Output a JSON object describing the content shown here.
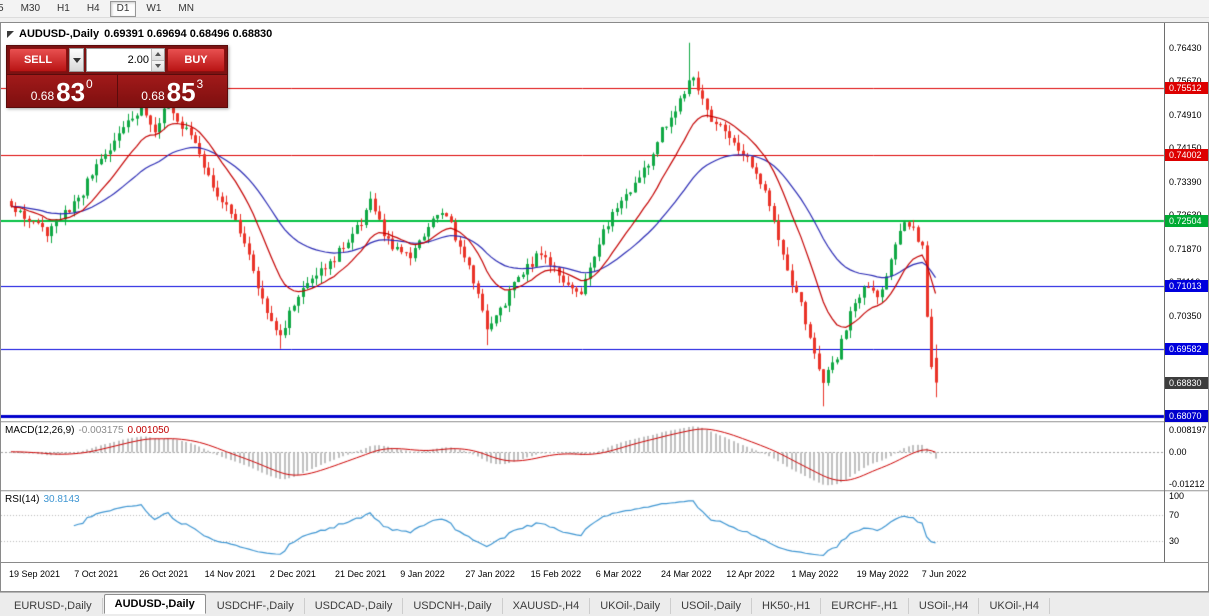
{
  "toolbar": {
    "periods": [
      {
        "label": "5",
        "active": false
      },
      {
        "label": "M30",
        "active": false
      },
      {
        "label": "H1",
        "active": false
      },
      {
        "label": "H4",
        "active": false
      },
      {
        "label": "D1",
        "active": true
      },
      {
        "label": "W1",
        "active": false
      },
      {
        "label": "MN",
        "active": false
      }
    ]
  },
  "chart_header": {
    "title": "AUDUSD-,Daily",
    "ohlc": "0.69391 0.69694 0.68496 0.68830"
  },
  "trade_panel": {
    "sell_label": "SELL",
    "buy_label": "BUY",
    "volume": "2.00",
    "bid": {
      "prefix": "0.68",
      "big": "83",
      "sup": "0"
    },
    "ask": {
      "prefix": "0.68",
      "big": "85",
      "sup": "3"
    }
  },
  "price_axis": {
    "labels": [
      "0.76430",
      "0.75670",
      "0.74910",
      "0.74150",
      "0.73390",
      "0.72630",
      "0.71870",
      "0.71110",
      "0.70350"
    ],
    "badges": [
      {
        "value": "0.75512",
        "color": "#dd0000",
        "current": false
      },
      {
        "value": "0.74002",
        "color": "#dd0000",
        "current": false
      },
      {
        "value": "0.72504",
        "color": "#00aa33",
        "current": false
      },
      {
        "value": "0.71013",
        "color": "#0000dd",
        "current": false
      },
      {
        "value": "0.69582",
        "color": "#0000dd",
        "current": false
      },
      {
        "value": "0.68830",
        "color": "#3d3d3d",
        "current": true
      },
      {
        "value": "0.68070",
        "color": "#0000cc",
        "current": false
      }
    ]
  },
  "macd_panel": {
    "label": "MACD(12,26,9)",
    "main_value": "-0.003175",
    "signal_value": "0.001050",
    "axis_labels": [
      {
        "text": "0.008197",
        "value": 0.008197
      },
      {
        "text": "0.00",
        "value": 0
      },
      {
        "text": "-0.01212",
        "value": -0.01212
      }
    ]
  },
  "rsi_panel": {
    "label": "RSI(14)",
    "value": "30.8143",
    "axis_labels": [
      {
        "text": "100",
        "value": 100
      },
      {
        "text": "70",
        "value": 70
      },
      {
        "text": "30",
        "value": 30
      }
    ],
    "levels": [
      70,
      30
    ]
  },
  "date_axis": {
    "labels": [
      "19 Sep 2021",
      "7 Oct 2021",
      "26 Oct 2021",
      "14 Nov 2021",
      "2 Dec 2021",
      "21 Dec 2021",
      "9 Jan 2022",
      "27 Jan 2022",
      "15 Feb 2022",
      "6 Mar 2022",
      "24 Mar 2022",
      "12 Apr 2022",
      "1 May 2022",
      "19 May 2022",
      "7 Jun 2022"
    ]
  },
  "bottom_tabs": [
    {
      "label": "EURUSD-,Daily",
      "active": false
    },
    {
      "label": "AUDUSD-,Daily",
      "active": true
    },
    {
      "label": "USDCHF-,Daily",
      "active": false
    },
    {
      "label": "USDCAD-,Daily",
      "active": false
    },
    {
      "label": "USDCNH-,Daily",
      "active": false
    },
    {
      "label": "XAUUSD-,H4",
      "active": false
    },
    {
      "label": "UKOil-,Daily",
      "active": false
    },
    {
      "label": "USOil-,Daily",
      "active": false
    },
    {
      "label": "HK50-,H1",
      "active": false
    },
    {
      "label": "EURCHF-,H1",
      "active": false
    },
    {
      "label": "USOil-,H4",
      "active": false
    },
    {
      "label": "UKOil-,H4",
      "active": false
    }
  ],
  "chart_data": {
    "type": "candlestick",
    "symbol": "AUDUSD",
    "timeframe": "Daily",
    "price_axis_range": {
      "max": 0.76998,
      "min": 0.67957,
      "grid_step": 0.0076
    },
    "up_color": "#10a844",
    "down_color": "#ea3328",
    "levels": [
      {
        "price": 0.75512,
        "color": "#dd0000",
        "width": 1
      },
      {
        "price": 0.74002,
        "color": "#dd0000",
        "width": 1
      },
      {
        "price": 0.72504,
        "color": "#00c040",
        "width": 2
      },
      {
        "price": 0.71013,
        "color": "#0000dd",
        "width": 1
      },
      {
        "price": 0.69582,
        "color": "#0000dd",
        "width": 1
      },
      {
        "price": 0.6807,
        "color": "#0000cc",
        "width": 3
      }
    ],
    "candles": {
      "count": 207,
      "seed": 11,
      "noise": 0.0011,
      "wick": 0.0018,
      "close_anchors": [
        [
          0,
          0.728
        ],
        [
          4,
          0.7252
        ],
        [
          8,
          0.7225
        ],
        [
          12,
          0.7268
        ],
        [
          15,
          0.73
        ],
        [
          18,
          0.7355
        ],
        [
          22,
          0.7415
        ],
        [
          26,
          0.7478
        ],
        [
          29,
          0.7505
        ],
        [
          32,
          0.7462
        ],
        [
          35,
          0.7515
        ],
        [
          38,
          0.747
        ],
        [
          41,
          0.7432
        ],
        [
          45,
          0.733
        ],
        [
          49,
          0.727
        ],
        [
          53,
          0.7165
        ],
        [
          57,
          0.705
        ],
        [
          60,
          0.6993
        ],
        [
          63,
          0.706
        ],
        [
          67,
          0.713
        ],
        [
          71,
          0.7155
        ],
        [
          75,
          0.7205
        ],
        [
          78,
          0.7245
        ],
        [
          80,
          0.729
        ],
        [
          83,
          0.722
        ],
        [
          86,
          0.718
        ],
        [
          89,
          0.717
        ],
        [
          92,
          0.7215
        ],
        [
          95,
          0.727
        ],
        [
          98,
          0.724
        ],
        [
          101,
          0.717
        ],
        [
          104,
          0.7085
        ],
        [
          106,
          0.7005
        ],
        [
          109,
          0.7045
        ],
        [
          112,
          0.711
        ],
        [
          115,
          0.7145
        ],
        [
          118,
          0.718
        ],
        [
          121,
          0.7145
        ],
        [
          124,
          0.7105
        ],
        [
          127,
          0.7085
        ],
        [
          130,
          0.7175
        ],
        [
          133,
          0.7245
        ],
        [
          136,
          0.7295
        ],
        [
          139,
          0.733
        ],
        [
          142,
          0.7385
        ],
        [
          145,
          0.7455
        ],
        [
          148,
          0.7495
        ],
        [
          151,
          0.7575
        ],
        [
          153,
          0.7555
        ],
        [
          156,
          0.748
        ],
        [
          159,
          0.745
        ],
        [
          162,
          0.7405
        ],
        [
          165,
          0.738
        ],
        [
          168,
          0.732
        ],
        [
          170,
          0.725
        ],
        [
          173,
          0.7135
        ],
        [
          176,
          0.706
        ],
        [
          179,
          0.6955
        ],
        [
          181,
          0.6885
        ],
        [
          184,
          0.6945
        ],
        [
          187,
          0.7035
        ],
        [
          190,
          0.71
        ],
        [
          193,
          0.7075
        ],
        [
          196,
          0.716
        ],
        [
          199,
          0.7255
        ],
        [
          201,
          0.7225
        ],
        [
          203,
          0.719
        ],
        [
          204,
          0.704
        ],
        [
          205,
          0.6925
        ],
        [
          206,
          0.6883
        ]
      ],
      "spikes": [
        {
          "i": 60,
          "low": 0.696
        },
        {
          "i": 106,
          "low": 0.6968
        },
        {
          "i": 151,
          "high": 0.7655
        },
        {
          "i": 181,
          "low": 0.6829
        }
      ],
      "last_candle": {
        "open": 0.69391,
        "high": 0.69694,
        "low": 0.68496,
        "close": 0.6883
      }
    },
    "moving_averages": [
      {
        "period": 13,
        "color": "#c40000"
      },
      {
        "period": 34,
        "color": "#2a2ab4"
      }
    ],
    "macd": {
      "fast": 12,
      "slow": 26,
      "signal": 9,
      "scale_max": 0.008197,
      "scale_min": -0.01212,
      "histogram_color": "#c0c0c0",
      "signal_color": "#cc0000"
    },
    "rsi": {
      "period": 14,
      "color": "#3f96d2"
    }
  }
}
